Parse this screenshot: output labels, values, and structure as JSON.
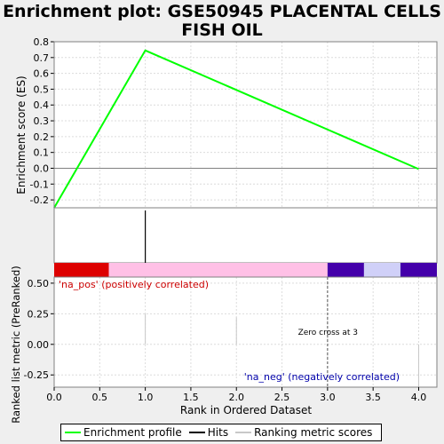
{
  "title": "Enrichment plot: GSE50945 PLACENTAL CELLS",
  "title_line2": "FISH OIL",
  "colors": {
    "enrichment_line": "#00ff00",
    "hits": "#000000",
    "ranking": "#c8c8c8",
    "pos_bar": "#dd0000",
    "pink": "#ffc0e6",
    "purple": "#4400aa",
    "lavender": "#d0d0f8",
    "pos_label": "#cc0000",
    "neg_label": "#0000aa"
  },
  "chart_data": {
    "type": "line",
    "top_panel": {
      "ylabel": "Enrichment score (ES)",
      "ylim": [
        -0.25,
        0.8
      ],
      "yticks": [
        "0.8",
        "0.7",
        "0.6",
        "0.5",
        "0.4",
        "0.3",
        "0.2",
        "0.1",
        "0.0",
        "-0.1",
        "-0.2"
      ],
      "series": [
        {
          "x": [
            0,
            1,
            4
          ],
          "y": [
            -0.25,
            0.745,
            -0.005
          ]
        }
      ]
    },
    "hits": [
      1
    ],
    "color_bar": [
      {
        "from": 0,
        "to": 0.6,
        "color": "pos_bar"
      },
      {
        "from": 0.6,
        "to": 3.0,
        "color": "pink"
      },
      {
        "from": 3.0,
        "to": 3.4,
        "color": "purple"
      },
      {
        "from": 3.4,
        "to": 3.8,
        "color": "lavender"
      },
      {
        "from": 3.8,
        "to": 4.2,
        "color": "purple"
      }
    ],
    "bottom_panel": {
      "ylabel": "Ranked list metric (PreRanked)",
      "ylim": [
        -0.35,
        0.55
      ],
      "yticks": [
        "0.50",
        "0.25",
        "0.00",
        "-0.25"
      ],
      "ranking_lines": [
        {
          "x": 1,
          "y": 0.25
        },
        {
          "x": 2,
          "y": 0.22
        },
        {
          "x": 4,
          "y": -0.35
        }
      ],
      "zero_cross": 3,
      "pos_label": "'na_pos' (positively correlated)",
      "neg_label": "'na_neg' (negatively correlated)",
      "zero_cross_label": "Zero cross at 3"
    },
    "xlabel": "Rank in Ordered Dataset",
    "xlim": [
      0,
      4.2
    ],
    "xticks": [
      "0.0",
      "0.5",
      "1.0",
      "1.5",
      "2.0",
      "2.5",
      "3.0",
      "3.5",
      "4.0"
    ]
  },
  "legend": {
    "items": [
      "Enrichment profile",
      "Hits",
      "Ranking metric scores"
    ]
  }
}
